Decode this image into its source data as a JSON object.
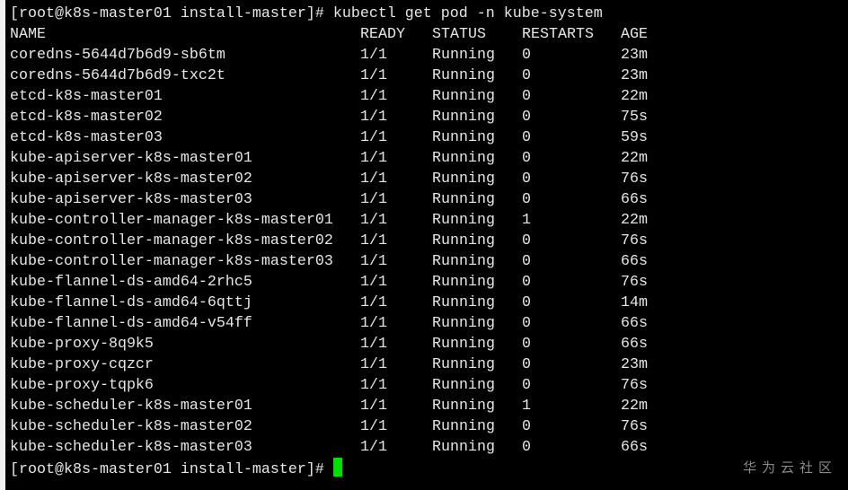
{
  "terminal": {
    "prompt": "[root@k8s-master01 install-master]#",
    "command": "kubectl get pod -n kube-system",
    "cursor_color": "#00e000",
    "headers": [
      "NAME",
      "READY",
      "STATUS",
      "RESTARTS",
      "AGE"
    ],
    "rows": [
      [
        "coredns-5644d7b6d9-sb6tm",
        "1/1",
        "Running",
        "0",
        "23m"
      ],
      [
        "coredns-5644d7b6d9-txc2t",
        "1/1",
        "Running",
        "0",
        "23m"
      ],
      [
        "etcd-k8s-master01",
        "1/1",
        "Running",
        "0",
        "22m"
      ],
      [
        "etcd-k8s-master02",
        "1/1",
        "Running",
        "0",
        "75s"
      ],
      [
        "etcd-k8s-master03",
        "1/1",
        "Running",
        "0",
        "59s"
      ],
      [
        "kube-apiserver-k8s-master01",
        "1/1",
        "Running",
        "0",
        "22m"
      ],
      [
        "kube-apiserver-k8s-master02",
        "1/1",
        "Running",
        "0",
        "76s"
      ],
      [
        "kube-apiserver-k8s-master03",
        "1/1",
        "Running",
        "0",
        "66s"
      ],
      [
        "kube-controller-manager-k8s-master01",
        "1/1",
        "Running",
        "1",
        "22m"
      ],
      [
        "kube-controller-manager-k8s-master02",
        "1/1",
        "Running",
        "0",
        "76s"
      ],
      [
        "kube-controller-manager-k8s-master03",
        "1/1",
        "Running",
        "0",
        "66s"
      ],
      [
        "kube-flannel-ds-amd64-2rhc5",
        "1/1",
        "Running",
        "0",
        "76s"
      ],
      [
        "kube-flannel-ds-amd64-6qttj",
        "1/1",
        "Running",
        "0",
        "14m"
      ],
      [
        "kube-flannel-ds-amd64-v54ff",
        "1/1",
        "Running",
        "0",
        "66s"
      ],
      [
        "kube-proxy-8q9k5",
        "1/1",
        "Running",
        "0",
        "66s"
      ],
      [
        "kube-proxy-cqzcr",
        "1/1",
        "Running",
        "0",
        "23m"
      ],
      [
        "kube-proxy-tqpk6",
        "1/1",
        "Running",
        "0",
        "76s"
      ],
      [
        "kube-scheduler-k8s-master01",
        "1/1",
        "Running",
        "1",
        "22m"
      ],
      [
        "kube-scheduler-k8s-master02",
        "1/1",
        "Running",
        "0",
        "76s"
      ],
      [
        "kube-scheduler-k8s-master03",
        "1/1",
        "Running",
        "0",
        "66s"
      ]
    ]
  },
  "watermark": "华为云社区"
}
